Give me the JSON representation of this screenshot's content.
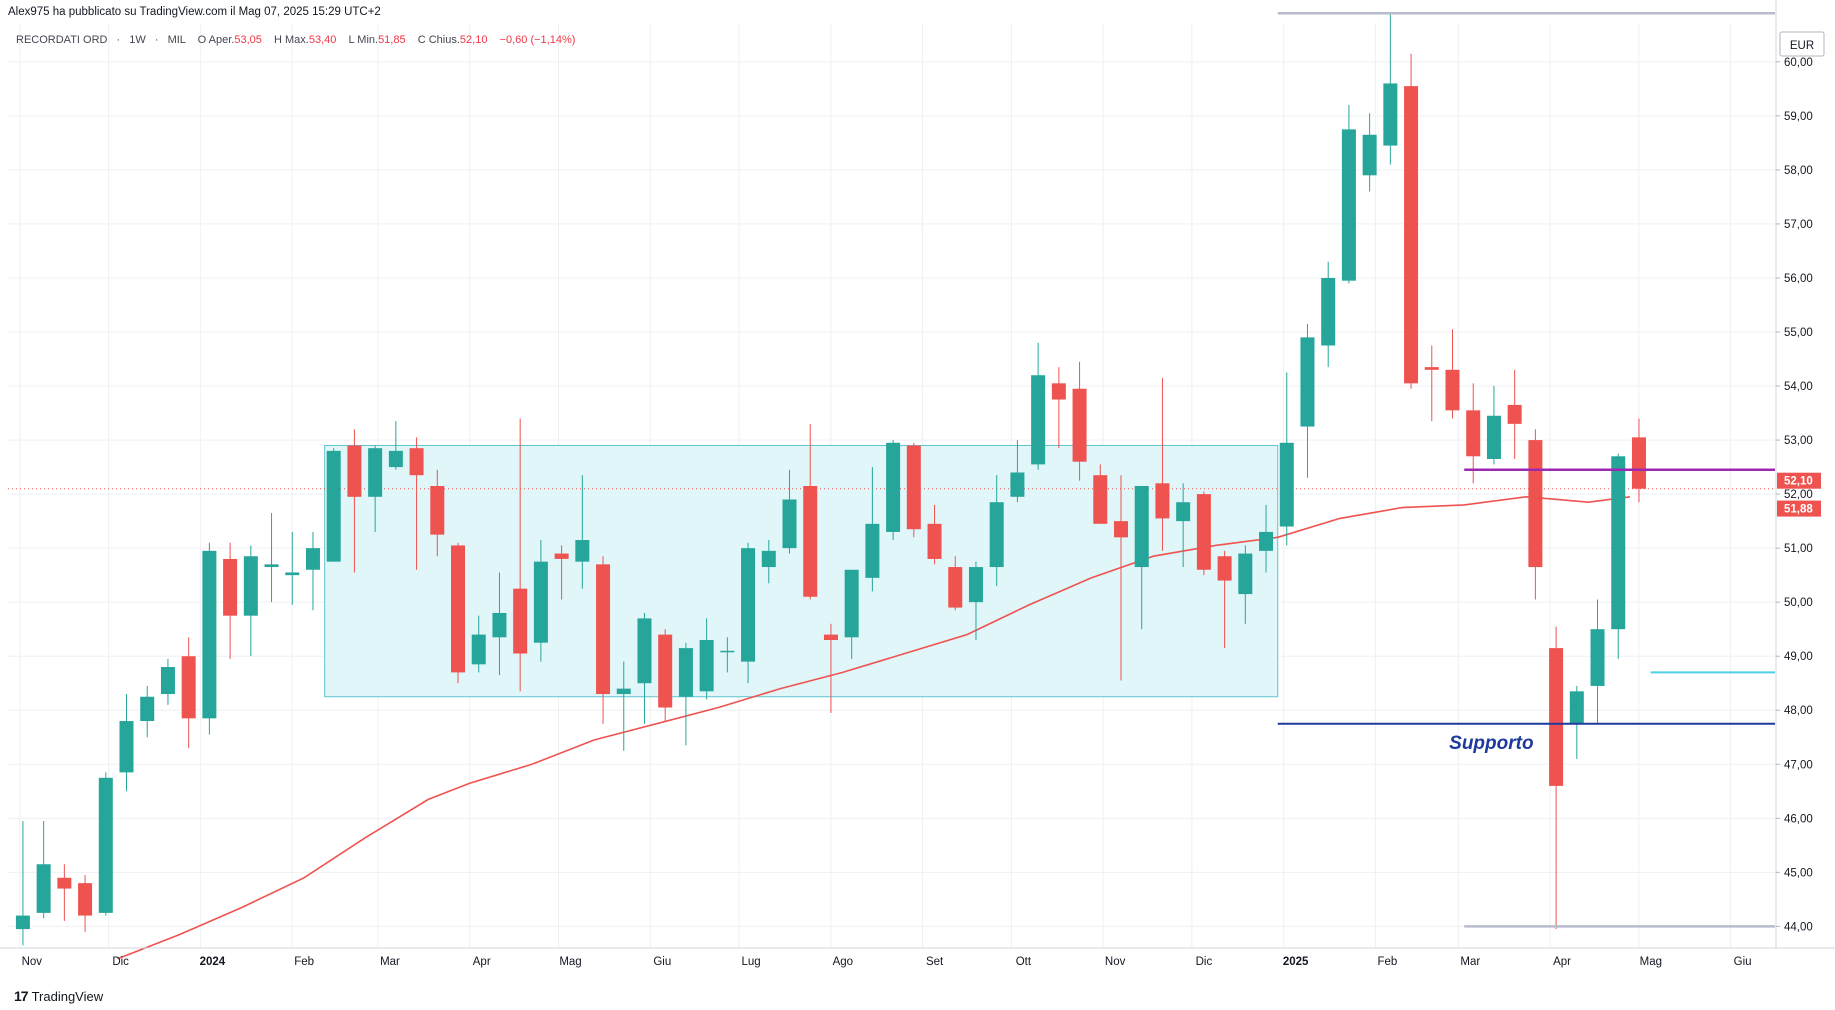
{
  "header": {
    "publish_line": "Alex975 ha pubblicato su TradingView.com il Mag 07, 2025 15:29 UTC+2"
  },
  "legend": {
    "symbol": "RECORDATI ORD",
    "interval": "1W",
    "exchange": "MIL",
    "open_label": "O",
    "open_text": "Aper.",
    "open_value": "53,05",
    "high_label": "H",
    "high_text": "Max.",
    "high_value": "53,40",
    "low_label": "L",
    "low_text": "Min.",
    "low_value": "51,85",
    "close_label": "C",
    "close_text": "Chius.",
    "close_value": "52,10",
    "change": "−0,60 (−1,14%)"
  },
  "footer": {
    "logo": "17",
    "brand": "TradingView"
  },
  "colors": {
    "up": "#26a69a",
    "down": "#ef5350",
    "ma": "#ef5350",
    "box_fill": "#e0f6f9",
    "box_stroke": "#5fc4ce",
    "support": "#1e3a9e",
    "resistance": "#9c27b0",
    "grey_level": "#b8bccc",
    "cyan_level": "#4dd0e1",
    "grid": "#eef0f3"
  },
  "chart_data": {
    "type": "candlestick",
    "currency": "EUR",
    "ylim": [
      43.6,
      60.7
    ],
    "y_ticks": [
      "44,00",
      "45,00",
      "46,00",
      "47,00",
      "48,00",
      "49,00",
      "50,00",
      "51,00",
      "52,00",
      "53,00",
      "54,00",
      "55,00",
      "56,00",
      "57,00",
      "58,00",
      "59,00",
      "60,00"
    ],
    "y_tick_values": [
      44,
      45,
      46,
      47,
      48,
      49,
      50,
      51,
      52,
      53,
      54,
      55,
      56,
      57,
      58,
      59,
      60
    ],
    "x_ticks": [
      {
        "label": "Nov",
        "date": "2023-11-01",
        "bold": false
      },
      {
        "label": "Dic",
        "date": "2023-12-01",
        "bold": false
      },
      {
        "label": "2024",
        "date": "2024-01-01",
        "bold": true
      },
      {
        "label": "Feb",
        "date": "2024-02-01",
        "bold": false
      },
      {
        "label": "Mar",
        "date": "2024-03-01",
        "bold": false
      },
      {
        "label": "Apr",
        "date": "2024-04-01",
        "bold": false
      },
      {
        "label": "Mag",
        "date": "2024-05-01",
        "bold": false
      },
      {
        "label": "Giu",
        "date": "2024-06-01",
        "bold": false
      },
      {
        "label": "Lug",
        "date": "2024-07-01",
        "bold": false
      },
      {
        "label": "Ago",
        "date": "2024-08-01",
        "bold": false
      },
      {
        "label": "Set",
        "date": "2024-09-01",
        "bold": false
      },
      {
        "label": "Ott",
        "date": "2024-10-01",
        "bold": false
      },
      {
        "label": "Nov",
        "date": "2024-11-01",
        "bold": false
      },
      {
        "label": "Dic",
        "date": "2024-12-01",
        "bold": false
      },
      {
        "label": "2025",
        "date": "2025-01-01",
        "bold": true
      },
      {
        "label": "Feb",
        "date": "2025-02-01",
        "bold": false
      },
      {
        "label": "Mar",
        "date": "2025-03-01",
        "bold": false
      },
      {
        "label": "Apr",
        "date": "2025-04-01",
        "bold": false
      },
      {
        "label": "Mag",
        "date": "2025-05-01",
        "bold": false
      },
      {
        "label": "Giu",
        "date": "2025-06-01",
        "bold": false
      }
    ],
    "x_range": [
      "2023-10-28",
      "2025-06-16"
    ],
    "candles": [
      {
        "date": "2023-10-30",
        "o": 43.95,
        "h": 45.95,
        "l": 43.65,
        "c": 44.2
      },
      {
        "date": "2023-11-06",
        "o": 44.25,
        "h": 45.95,
        "l": 44.15,
        "c": 45.15
      },
      {
        "date": "2023-11-13",
        "o": 44.9,
        "h": 45.15,
        "l": 44.1,
        "c": 44.7
      },
      {
        "date": "2023-11-20",
        "o": 44.8,
        "h": 44.95,
        "l": 43.9,
        "c": 44.2
      },
      {
        "date": "2023-11-27",
        "o": 44.25,
        "h": 46.85,
        "l": 44.2,
        "c": 46.75
      },
      {
        "date": "2023-12-04",
        "o": 46.85,
        "h": 48.3,
        "l": 46.5,
        "c": 47.8
      },
      {
        "date": "2023-12-11",
        "o": 47.8,
        "h": 48.45,
        "l": 47.5,
        "c": 48.25
      },
      {
        "date": "2023-12-18",
        "o": 48.3,
        "h": 48.95,
        "l": 48.1,
        "c": 48.8
      },
      {
        "date": "2023-12-25",
        "o": 49.0,
        "h": 49.35,
        "l": 47.3,
        "c": 47.85
      },
      {
        "date": "2024-01-01",
        "o": 47.85,
        "h": 51.1,
        "l": 47.55,
        "c": 50.95
      },
      {
        "date": "2024-01-08",
        "o": 50.8,
        "h": 51.1,
        "l": 48.95,
        "c": 49.75
      },
      {
        "date": "2024-01-15",
        "o": 49.75,
        "h": 51.05,
        "l": 49.0,
        "c": 50.85
      },
      {
        "date": "2024-01-22",
        "o": 50.65,
        "h": 51.65,
        "l": 50.0,
        "c": 50.7
      },
      {
        "date": "2024-01-29",
        "o": 50.5,
        "h": 51.3,
        "l": 49.95,
        "c": 50.55
      },
      {
        "date": "2024-02-05",
        "o": 50.6,
        "h": 51.3,
        "l": 49.85,
        "c": 51.0
      },
      {
        "date": "2024-02-12",
        "o": 50.75,
        "h": 52.85,
        "l": 50.75,
        "c": 52.8
      },
      {
        "date": "2024-02-19",
        "o": 52.9,
        "h": 53.2,
        "l": 50.55,
        "c": 51.95
      },
      {
        "date": "2024-02-26",
        "o": 51.95,
        "h": 52.9,
        "l": 51.3,
        "c": 52.85
      },
      {
        "date": "2024-03-04",
        "o": 52.5,
        "h": 53.35,
        "l": 52.45,
        "c": 52.8
      },
      {
        "date": "2024-03-11",
        "o": 52.85,
        "h": 53.05,
        "l": 50.6,
        "c": 52.35
      },
      {
        "date": "2024-03-18",
        "o": 52.15,
        "h": 52.45,
        "l": 50.85,
        "c": 51.25
      },
      {
        "date": "2024-03-25",
        "o": 51.05,
        "h": 51.1,
        "l": 48.5,
        "c": 48.7
      },
      {
        "date": "2024-04-01",
        "o": 48.85,
        "h": 49.75,
        "l": 48.7,
        "c": 49.4
      },
      {
        "date": "2024-04-08",
        "o": 49.35,
        "h": 50.55,
        "l": 48.65,
        "c": 49.8
      },
      {
        "date": "2024-04-15",
        "o": 50.25,
        "h": 53.4,
        "l": 48.35,
        "c": 49.05
      },
      {
        "date": "2024-04-22",
        "o": 49.25,
        "h": 51.15,
        "l": 48.9,
        "c": 50.75
      },
      {
        "date": "2024-04-29",
        "o": 50.9,
        "h": 51.05,
        "l": 50.05,
        "c": 50.8
      },
      {
        "date": "2024-05-06",
        "o": 50.75,
        "h": 52.35,
        "l": 50.25,
        "c": 51.15
      },
      {
        "date": "2024-05-13",
        "o": 50.7,
        "h": 50.85,
        "l": 47.75,
        "c": 48.3
      },
      {
        "date": "2024-05-20",
        "o": 48.3,
        "h": 48.9,
        "l": 47.25,
        "c": 48.4
      },
      {
        "date": "2024-05-27",
        "o": 48.5,
        "h": 49.8,
        "l": 47.75,
        "c": 49.7
      },
      {
        "date": "2024-06-03",
        "o": 49.4,
        "h": 49.5,
        "l": 47.8,
        "c": 48.05
      },
      {
        "date": "2024-06-10",
        "o": 48.25,
        "h": 49.25,
        "l": 47.35,
        "c": 49.15
      },
      {
        "date": "2024-06-17",
        "o": 48.35,
        "h": 49.7,
        "l": 48.2,
        "c": 49.3
      },
      {
        "date": "2024-06-24",
        "o": 49.1,
        "h": 49.35,
        "l": 48.7,
        "c": 49.1
      },
      {
        "date": "2024-07-01",
        "o": 48.9,
        "h": 51.1,
        "l": 48.5,
        "c": 51.0
      },
      {
        "date": "2024-07-08",
        "o": 50.65,
        "h": 51.15,
        "l": 50.35,
        "c": 50.95
      },
      {
        "date": "2024-07-15",
        "o": 51.0,
        "h": 52.45,
        "l": 50.9,
        "c": 51.9
      },
      {
        "date": "2024-07-22",
        "o": 52.15,
        "h": 53.3,
        "l": 50.05,
        "c": 50.1
      },
      {
        "date": "2024-07-29",
        "o": 49.4,
        "h": 49.6,
        "l": 47.95,
        "c": 49.3
      },
      {
        "date": "2024-08-05",
        "o": 49.35,
        "h": 50.6,
        "l": 48.95,
        "c": 50.6
      },
      {
        "date": "2024-08-12",
        "o": 50.45,
        "h": 52.5,
        "l": 50.2,
        "c": 51.45
      },
      {
        "date": "2024-08-19",
        "o": 51.3,
        "h": 53.0,
        "l": 51.15,
        "c": 52.95
      },
      {
        "date": "2024-08-26",
        "o": 52.9,
        "h": 52.95,
        "l": 51.2,
        "c": 51.35
      },
      {
        "date": "2024-09-02",
        "o": 51.45,
        "h": 51.8,
        "l": 50.7,
        "c": 50.8
      },
      {
        "date": "2024-09-09",
        "o": 50.65,
        "h": 50.85,
        "l": 49.85,
        "c": 49.9
      },
      {
        "date": "2024-09-16",
        "o": 50.0,
        "h": 50.75,
        "l": 49.3,
        "c": 50.65
      },
      {
        "date": "2024-09-23",
        "o": 50.65,
        "h": 52.35,
        "l": 50.3,
        "c": 51.85
      },
      {
        "date": "2024-09-30",
        "o": 51.95,
        "h": 53.0,
        "l": 51.85,
        "c": 52.4
      },
      {
        "date": "2024-10-07",
        "o": 52.55,
        "h": 54.8,
        "l": 52.45,
        "c": 54.2
      },
      {
        "date": "2024-10-14",
        "o": 54.05,
        "h": 54.35,
        "l": 52.85,
        "c": 53.75
      },
      {
        "date": "2024-10-21",
        "o": 53.95,
        "h": 54.45,
        "l": 52.25,
        "c": 52.6
      },
      {
        "date": "2024-10-28",
        "o": 52.35,
        "h": 52.55,
        "l": 51.6,
        "c": 51.45
      },
      {
        "date": "2024-11-04",
        "o": 51.5,
        "h": 52.35,
        "l": 48.55,
        "c": 51.2
      },
      {
        "date": "2024-11-11",
        "o": 50.65,
        "h": 52.05,
        "l": 49.5,
        "c": 52.15
      },
      {
        "date": "2024-11-18",
        "o": 52.2,
        "h": 54.15,
        "l": 50.95,
        "c": 51.55
      },
      {
        "date": "2024-11-25",
        "o": 51.5,
        "h": 52.2,
        "l": 50.65,
        "c": 51.85
      },
      {
        "date": "2024-12-02",
        "o": 52.0,
        "h": 52.05,
        "l": 50.5,
        "c": 50.6
      },
      {
        "date": "2024-12-09",
        "o": 50.85,
        "h": 50.95,
        "l": 49.15,
        "c": 50.4
      },
      {
        "date": "2024-12-16",
        "o": 50.15,
        "h": 51.05,
        "l": 49.6,
        "c": 50.9
      },
      {
        "date": "2024-12-23",
        "o": 50.95,
        "h": 51.8,
        "l": 50.55,
        "c": 51.3
      },
      {
        "date": "2024-12-30",
        "o": 51.4,
        "h": 54.25,
        "l": 51.05,
        "c": 52.95
      },
      {
        "date": "2025-01-06",
        "o": 53.25,
        "h": 55.15,
        "l": 52.3,
        "c": 54.9
      },
      {
        "date": "2025-01-13",
        "o": 54.75,
        "h": 56.3,
        "l": 54.35,
        "c": 56.0
      },
      {
        "date": "2025-01-20",
        "o": 55.95,
        "h": 59.2,
        "l": 55.9,
        "c": 58.75
      },
      {
        "date": "2025-01-27",
        "o": 57.9,
        "h": 59.05,
        "l": 57.6,
        "c": 58.65
      },
      {
        "date": "2025-02-03",
        "o": 58.45,
        "h": 60.9,
        "l": 58.1,
        "c": 59.6
      },
      {
        "date": "2025-02-10",
        "o": 59.55,
        "h": 60.15,
        "l": 53.95,
        "c": 54.05
      },
      {
        "date": "2025-02-17",
        "o": 54.35,
        "h": 54.75,
        "l": 53.35,
        "c": 54.3
      },
      {
        "date": "2025-02-24",
        "o": 54.3,
        "h": 55.05,
        "l": 53.4,
        "c": 53.55
      },
      {
        "date": "2025-03-03",
        "o": 53.55,
        "h": 54.05,
        "l": 52.2,
        "c": 52.7
      },
      {
        "date": "2025-03-10",
        "o": 52.65,
        "h": 54.0,
        "l": 52.55,
        "c": 53.45
      },
      {
        "date": "2025-03-17",
        "o": 53.65,
        "h": 54.3,
        "l": 52.65,
        "c": 53.3
      },
      {
        "date": "2025-03-24",
        "o": 53.0,
        "h": 53.2,
        "l": 50.05,
        "c": 50.65
      },
      {
        "date": "2025-03-31",
        "o": 49.15,
        "h": 49.55,
        "l": 43.95,
        "c": 46.6
      },
      {
        "date": "2025-04-07",
        "o": 47.75,
        "h": 48.45,
        "l": 47.1,
        "c": 48.35
      },
      {
        "date": "2025-04-14",
        "o": 48.45,
        "h": 50.05,
        "l": 47.75,
        "c": 49.5
      },
      {
        "date": "2025-04-21",
        "o": 49.5,
        "h": 52.75,
        "l": 48.95,
        "c": 52.7
      },
      {
        "date": "2025-04-28",
        "o": 53.05,
        "h": 53.4,
        "l": 51.85,
        "c": 52.1
      }
    ],
    "ma_series": {
      "dates": [
        "2023-12-04",
        "2023-12-25",
        "2024-01-15",
        "2024-02-05",
        "2024-02-26",
        "2024-03-18",
        "2024-04-01",
        "2024-04-22",
        "2024-05-13",
        "2024-06-03",
        "2024-06-24",
        "2024-07-15",
        "2024-08-05",
        "2024-08-26",
        "2024-09-16",
        "2024-10-07",
        "2024-10-28",
        "2024-11-18",
        "2024-12-09",
        "2024-12-30",
        "2025-01-20",
        "2025-02-10",
        "2025-03-03",
        "2025-03-24",
        "2025-04-14",
        "2025-04-28"
      ],
      "values": [
        43.4,
        43.85,
        44.35,
        44.9,
        45.65,
        46.35,
        46.65,
        47.0,
        47.45,
        47.75,
        48.05,
        48.4,
        48.7,
        49.05,
        49.4,
        49.95,
        50.45,
        50.85,
        51.05,
        51.2,
        51.55,
        51.75,
        51.8,
        51.95,
        51.85,
        51.95
      ]
    },
    "range_box": {
      "start": "2024-02-12",
      "end": "2024-12-30",
      "top": 52.9,
      "bottom": 48.25
    },
    "support_line": {
      "start": "2024-12-30",
      "end": "2025-06-16",
      "value": 47.75,
      "label": "Supporto"
    },
    "resistance_line": {
      "start": "2025-03-03",
      "end": "2025-06-16",
      "value": 52.45
    },
    "top_level": {
      "start": "2024-12-30",
      "end": "2025-06-16",
      "value": 60.9
    },
    "bottom_level": {
      "start": "2025-03-03",
      "end": "2025-06-16",
      "value": 44.0
    },
    "cyan_level": {
      "start": "2025-05-05",
      "end": "2025-06-16",
      "value": 48.7
    },
    "price_labels": [
      {
        "text": "52,10",
        "value": 52.1,
        "color": "#ef5350"
      },
      {
        "text": "51,88",
        "value": 51.88,
        "color": "#ef5350"
      }
    ],
    "current_price": 52.1
  }
}
